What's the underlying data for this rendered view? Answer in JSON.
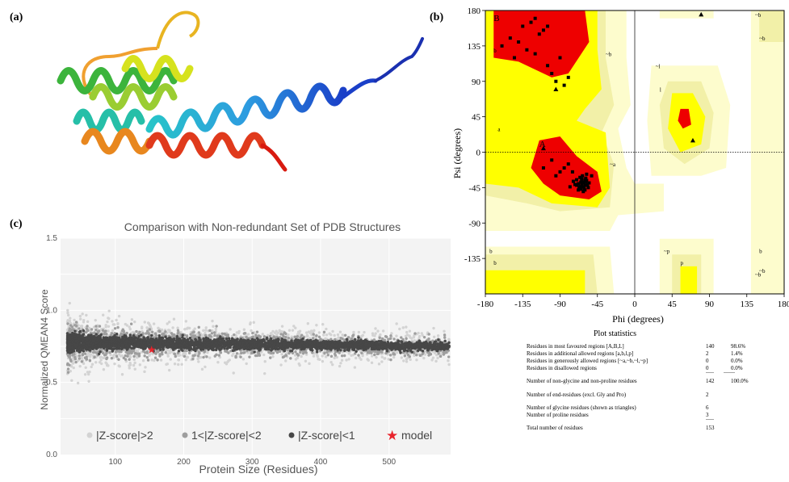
{
  "labels": {
    "a": "(a)",
    "b": "(b)",
    "c": "(c)"
  },
  "qmean": {
    "title": "Comparison with Non-redundant Set of PDB Structures",
    "xlabel": "Protein Size (Residues)",
    "ylabel": "Normalized QMEAN4 Score",
    "x_ticks": [
      "100",
      "200",
      "300",
      "400",
      "500"
    ],
    "y_ticks": [
      "0.0",
      "0.5",
      "1.0",
      "1.5"
    ],
    "legend": [
      "|Z-score|>2",
      "1<|Z-score|<2",
      "|Z-score|<1",
      "model"
    ]
  },
  "rama": {
    "xlabel": "Phi (degrees)",
    "ylabel": "Psi (degrees)",
    "x_ticks": [
      "-180",
      "-135",
      "-90",
      "-45",
      "0",
      "45",
      "90",
      "135",
      "180"
    ],
    "y_ticks": [
      "180",
      "135",
      "90",
      "45",
      "0",
      "-45",
      "-90",
      "-135"
    ],
    "region_labels": [
      "B",
      "b",
      "A",
      "a",
      "~b",
      "~a",
      "~l",
      "l",
      "~b",
      "~b",
      "~b",
      "~b",
      "~p",
      "p",
      "b",
      "b",
      "b"
    ],
    "stats_title": "Plot statistics",
    "stats": [
      {
        "label": "Residues in most favoured regions  [A,B,L]",
        "count": "140",
        "pct": "98.6%"
      },
      {
        "label": "Residues in additional allowed regions  [a,b,l,p]",
        "count": "2",
        "pct": "1.4%"
      },
      {
        "label": "Residues in generously allowed regions  [~a,~b,~l,~p]",
        "count": "0",
        "pct": "0.0%"
      },
      {
        "label": "Residues in disallowed regions",
        "count": "0",
        "pct": "0.0%"
      },
      {
        "label": "Number of non-glycine and non-proline residues",
        "count": "142",
        "pct": "100.0%"
      },
      {
        "label": "Number of end-residues (excl. Gly and Pro)",
        "count": "2",
        "pct": ""
      },
      {
        "label": "Number of glycine residues (shown as triangles)",
        "count": "6",
        "pct": ""
      },
      {
        "label": "Number of proline residues",
        "count": "3",
        "pct": ""
      },
      {
        "label": "Total number of residues",
        "count": "153",
        "pct": ""
      }
    ]
  },
  "colors": {
    "red": "#ee0000",
    "yellow": "#ffff00",
    "lightyellow": "#f2f0a8",
    "paleyellow": "#fdfccd",
    "model": "#e8242c"
  },
  "chart_data": [
    {
      "type": "scatter",
      "title": "Comparison with Non-redundant Set of PDB Structures",
      "xlabel": "Protein Size (Residues)",
      "ylabel": "Normalized QMEAN4 Score",
      "xlim": [
        20,
        590
      ],
      "ylim": [
        0.0,
        1.5
      ],
      "series": [
        {
          "name": "|Z-score|>2",
          "color": "#d3d3d3"
        },
        {
          "name": "1<|Z-score|<2",
          "color": "#9e9e9e"
        },
        {
          "name": "|Z-score|<1",
          "color": "#474747"
        },
        {
          "name": "model",
          "color": "#e8242c",
          "x": [
            153
          ],
          "y": [
            0.73
          ]
        }
      ]
    },
    {
      "type": "scatter",
      "xlabel": "Phi (degrees)",
      "ylabel": "Psi (degrees)",
      "xlim": [
        -180,
        180
      ],
      "ylim": [
        -180,
        180
      ],
      "series": [
        {
          "name": "residues",
          "x": [
            -64,
            -62,
            -60,
            -58,
            -66,
            -68,
            -70,
            -63,
            -61,
            -57,
            -59,
            -65,
            -67,
            -72,
            -55,
            -60,
            -62,
            -64,
            -58,
            -56,
            -70,
            -74,
            -63,
            -61,
            -66,
            -59,
            -68,
            -57,
            -65,
            -60,
            -100,
            -90,
            -80,
            -110,
            -95,
            -85,
            -75,
            -52,
            -78,
            -105,
            -120,
            -140,
            -145,
            -130,
            -110,
            -115,
            -125,
            -160,
            -150,
            -100,
            -105,
            -120,
            -95,
            -135,
            -85,
            -80,
            -90
          ],
          "y": [
            -40,
            -38,
            -42,
            -36,
            -44,
            -40,
            -35,
            -30,
            -46,
            -41,
            -33,
            -38,
            -45,
            -41,
            -39,
            -48,
            -50,
            -34,
            -28,
            -45,
            -42,
            -37,
            -44,
            -39,
            -32,
            -37,
            -48,
            -42,
            -47,
            -35,
            -10,
            -25,
            -15,
            -20,
            -30,
            -20,
            -25,
            -30,
            -44,
            160,
            170,
            140,
            120,
            130,
            155,
            150,
            165,
            135,
            145,
            100,
            110,
            125,
            90,
            160,
            85,
            95,
            120
          ]
        },
        {
          "name": "glycine",
          "x": [
            -110,
            -95,
            80,
            70
          ],
          "y": [
            5,
            80,
            175,
            15
          ]
        }
      ]
    }
  ]
}
